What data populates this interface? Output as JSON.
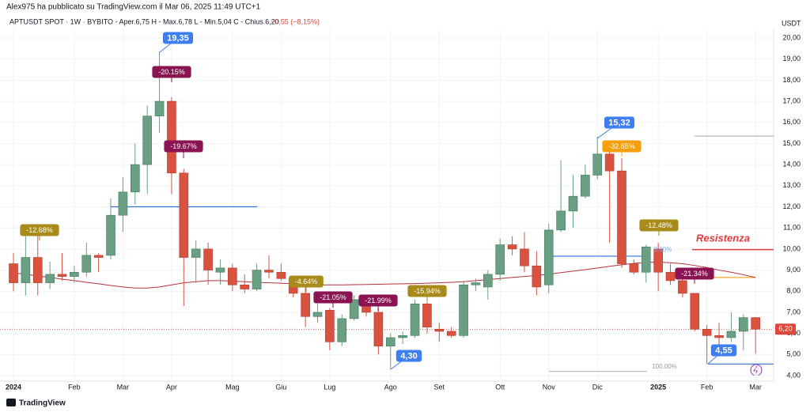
{
  "header": {
    "author": "Alex975 ha pubblicato su TradingView.com il Mar 06, 2025 11:49 UTC+1",
    "symbol": "APTUSDT SPOT · 1W · BYBIT",
    "ohlc": "O - Aper.6,75  H - Max.6,78  L - Min.5,04  C - Chius.6,20",
    "change": "−0,55 (−8,15%)"
  },
  "footer": {
    "logo": "TradingView"
  },
  "chart_data": {
    "type": "candlestick",
    "unit": "USDT",
    "ylim": [
      4,
      20
    ],
    "yticks": [
      {
        "value": 4,
        "label": "4,00"
      },
      {
        "value": 5,
        "label": "5,00"
      },
      {
        "value": 6,
        "label": "6,00"
      },
      {
        "value": 7,
        "label": "7,00"
      },
      {
        "value": 8,
        "label": "8,00"
      },
      {
        "value": 9,
        "label": "9,00"
      },
      {
        "value": 10,
        "label": "10,00"
      },
      {
        "value": 11,
        "label": "11,00"
      },
      {
        "value": 12,
        "label": "12,00"
      },
      {
        "value": 13,
        "label": "13,00"
      },
      {
        "value": 14,
        "label": "14,00"
      },
      {
        "value": 15,
        "label": "15,00"
      },
      {
        "value": 16,
        "label": "16,00"
      },
      {
        "value": 17,
        "label": "17,00"
      },
      {
        "value": 18,
        "label": "18,00"
      },
      {
        "value": 19,
        "label": "19,00"
      },
      {
        "value": 20,
        "label": "20,00"
      }
    ],
    "xticks": [
      {
        "value": 0,
        "label": "2024"
      },
      {
        "value": 5,
        "label": "Feb"
      },
      {
        "value": 9,
        "label": "Mar"
      },
      {
        "value": 13,
        "label": "Apr"
      },
      {
        "value": 18,
        "label": "Mag"
      },
      {
        "value": 22,
        "label": "Giu"
      },
      {
        "value": 26,
        "label": "Lug"
      },
      {
        "value": 31,
        "label": "Ago"
      },
      {
        "value": 35,
        "label": "Set"
      },
      {
        "value": 40,
        "label": "Ott"
      },
      {
        "value": 44,
        "label": "Nov"
      },
      {
        "value": 48,
        "label": "Dic"
      },
      {
        "value": 53,
        "label": "2025"
      },
      {
        "value": 57,
        "label": "Feb"
      },
      {
        "value": 61,
        "label": "Mar"
      }
    ],
    "up_color": "#6a9f83",
    "down_color": "#d8523f",
    "open": [
      9.3,
      8.4,
      9.6,
      8.4,
      8.8,
      8.7,
      8.9,
      9.7,
      9.7,
      11.6,
      12.7,
      14.0,
      16.3,
      17.0,
      13.6,
      9.6,
      10.0,
      8.9,
      9.1,
      8.3,
      8.1,
      9.0,
      8.9,
      8.6,
      7.9,
      6.8,
      7.1,
      5.6,
      6.7,
      7.6,
      7.0,
      5.4,
      5.8,
      5.9,
      7.4,
      6.2,
      6.1,
      5.9,
      8.3,
      8.2,
      8.8,
      10.2,
      10.0,
      9.2,
      8.3,
      10.9,
      11.8,
      12.5,
      13.5,
      14.5,
      13.7,
      9.3,
      8.9,
      10.0,
      8.9,
      8.5,
      7.9,
      6.2,
      5.9,
      5.8,
      6.1,
      6.75
    ],
    "high": [
      9.8,
      11.0,
      10.9,
      9.4,
      9.8,
      9.2,
      10.3,
      9.8,
      12.4,
      13.4,
      15.0,
      16.8,
      19.35,
      17.2,
      13.8,
      10.4,
      10.3,
      9.5,
      9.3,
      8.8,
      9.3,
      9.7,
      9.3,
      8.7,
      8.2,
      7.4,
      7.2,
      6.9,
      7.8,
      7.8,
      7.2,
      6.0,
      6.1,
      7.6,
      7.5,
      6.5,
      6.3,
      8.5,
      8.6,
      9.0,
      10.5,
      10.6,
      10.8,
      9.9,
      11.2,
      14.2,
      13.5,
      14.0,
      15.32,
      14.6,
      14.3,
      9.5,
      10.2,
      10.3,
      9.3,
      8.9,
      7.9,
      6.4,
      6.5,
      7.0,
      6.9,
      6.78
    ],
    "low": [
      8.0,
      7.8,
      7.8,
      8.1,
      8.5,
      8.4,
      8.7,
      8.9,
      9.5,
      10.8,
      12.1,
      12.6,
      15.5,
      12.6,
      7.3,
      8.4,
      8.3,
      8.3,
      8.0,
      7.9,
      8.0,
      8.6,
      8.5,
      7.7,
      6.3,
      6.5,
      5.2,
      5.4,
      6.6,
      6.8,
      5.0,
      4.3,
      5.5,
      5.8,
      6.0,
      5.6,
      5.8,
      5.8,
      8.0,
      7.6,
      8.5,
      9.7,
      8.9,
      7.8,
      7.9,
      10.8,
      11.0,
      12.4,
      13.3,
      10.3,
      9.1,
      8.8,
      8.4,
      8.0,
      8.3,
      7.7,
      6.1,
      4.55,
      5.2,
      5.6,
      5.2,
      5.04
    ],
    "close": [
      8.4,
      9.6,
      8.4,
      8.8,
      8.7,
      8.9,
      9.7,
      9.6,
      11.6,
      12.7,
      14.0,
      16.3,
      17.0,
      13.6,
      9.6,
      10.0,
      9.0,
      9.1,
      8.3,
      8.1,
      9.0,
      8.9,
      8.6,
      7.9,
      6.8,
      7.0,
      5.6,
      6.7,
      7.6,
      7.0,
      5.4,
      5.8,
      5.9,
      7.4,
      6.3,
      6.1,
      5.9,
      8.3,
      8.4,
      8.8,
      10.2,
      10.0,
      9.2,
      8.2,
      10.9,
      11.8,
      12.5,
      13.5,
      14.5,
      13.7,
      9.3,
      8.9,
      10.1,
      8.9,
      8.5,
      7.9,
      6.2,
      5.9,
      5.8,
      6.1,
      6.75,
      6.2
    ],
    "ma": {
      "color": "#b5323c",
      "values": [
        8.87,
        8.8,
        8.72,
        8.65,
        8.57,
        8.5,
        8.42,
        8.35,
        8.27,
        8.2,
        8.15,
        8.15,
        8.2,
        8.3,
        8.4,
        8.45,
        8.5,
        8.5,
        8.48,
        8.45,
        8.42,
        8.4,
        8.38,
        8.35,
        8.33,
        8.3,
        8.3,
        8.3,
        8.31,
        8.32,
        8.33,
        8.34,
        8.35,
        8.36,
        8.38,
        8.4,
        8.42,
        8.45,
        8.5,
        8.55,
        8.6,
        8.65,
        8.7,
        8.75,
        8.8,
        8.88,
        8.95,
        9.02,
        9.1,
        9.18,
        9.25,
        9.32,
        9.36,
        9.38,
        9.35,
        9.3,
        9.22,
        9.12,
        9.0,
        8.9,
        8.78,
        8.65
      ]
    },
    "levels": [
      {
        "value": 12.0,
        "color": "#2f6fdb"
      },
      {
        "value": 9.66,
        "color": "#2f6fdb"
      },
      {
        "value": 9.97,
        "color": "#e03a3a"
      },
      {
        "value": 8.65,
        "color": "#f5a623"
      },
      {
        "value": 15.35,
        "color": "#b8b8b8"
      },
      {
        "value": 4.2,
        "color": "#b8b8b8"
      },
      {
        "value": 4.55,
        "color": "#2f6fdb"
      }
    ],
    "last_price": {
      "value": 6.2,
      "label": "6,20",
      "color": "#e0473a"
    },
    "annotations": [
      {
        "text": "19,35",
        "color": "#3d7ef0"
      },
      {
        "text": "-20.15%",
        "color": "#8a1452"
      },
      {
        "text": "-19.67%",
        "color": "#8a1452"
      },
      {
        "text": "-12.68%",
        "color": "#a88b1a"
      },
      {
        "text": "-4.64%",
        "color": "#a88b1a"
      },
      {
        "text": "-21.05%",
        "color": "#8a1452"
      },
      {
        "text": "-21.99%",
        "color": "#8a1452"
      },
      {
        "text": "-15.94%",
        "color": "#a88b1a"
      },
      {
        "text": "4,30",
        "color": "#3d7ef0"
      },
      {
        "text": "15,32",
        "color": "#3d7ef0"
      },
      {
        "text": "-32.65%",
        "color": "#f5a00a"
      },
      {
        "text": "-12.48%",
        "color": "#a88b1a"
      },
      {
        "text": "-21.34%",
        "color": "#8a1452"
      },
      {
        "text": "4,55",
        "color": "#3d7ef0"
      }
    ],
    "notes": [
      {
        "text": "Resistenza",
        "color": "#e03a3a"
      },
      {
        "text": "100.00%",
        "color": "#9a9a9a"
      },
      {
        "text": "0.00%",
        "color": "#7fa6f0"
      }
    ]
  }
}
